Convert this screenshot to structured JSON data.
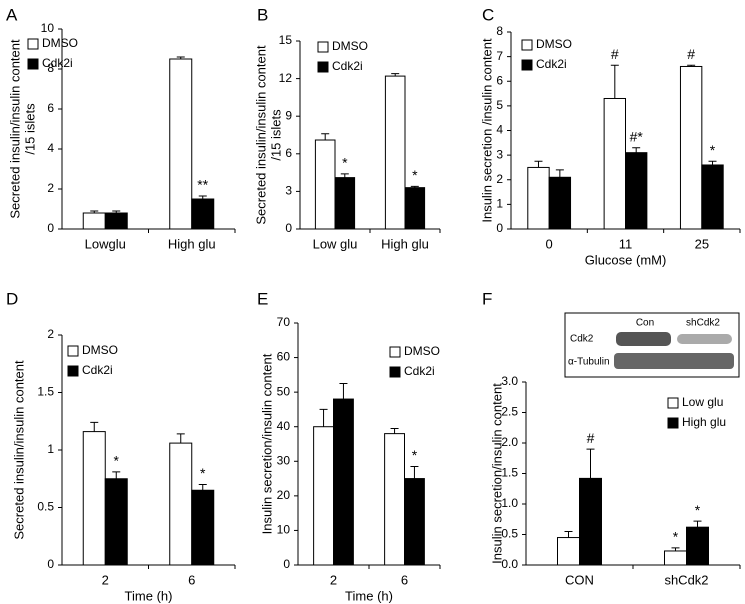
{
  "chart_data": [
    {
      "type": "bar",
      "title": "A",
      "ylabel": [
        "Secreted insulin/insulin content",
        "/15 islets"
      ],
      "categories": [
        "Lowglu",
        "High glu"
      ],
      "series": [
        {
          "name": "DMSO",
          "color": "#ffffff",
          "values": [
            0.8,
            8.5
          ],
          "errors": [
            0.1,
            0.1
          ],
          "annotations": [
            null,
            null
          ]
        },
        {
          "name": "Cdk2i",
          "color": "#000000",
          "values": [
            0.8,
            1.5
          ],
          "errors": [
            0.1,
            0.15
          ],
          "annotations": [
            null,
            "**"
          ]
        }
      ],
      "ylim": [
        0,
        10
      ],
      "yticks": [
        0,
        2,
        4,
        6,
        8,
        10
      ]
    },
    {
      "type": "bar",
      "title": "B",
      "ylabel": [
        "Secreted insulin/insulin content",
        "/15 islets"
      ],
      "categories": [
        "Low glu",
        "High glu"
      ],
      "series": [
        {
          "name": "DMSO",
          "color": "#ffffff",
          "values": [
            7.1,
            12.2
          ],
          "errors": [
            0.5,
            0.2
          ],
          "annotations": [
            null,
            null
          ]
        },
        {
          "name": "Cdk2i",
          "color": "#000000",
          "values": [
            4.1,
            3.3
          ],
          "errors": [
            0.3,
            0.1
          ],
          "annotations": [
            "*",
            "*"
          ]
        }
      ],
      "ylim": [
        0,
        15
      ],
      "yticks": [
        0,
        3,
        6,
        9,
        12,
        15
      ]
    },
    {
      "type": "bar",
      "title": "C",
      "ylabel": [
        "Insulin secretion /insulin content"
      ],
      "xlabel": "Glucose (mM)",
      "categories": [
        "0",
        "11",
        "25"
      ],
      "series": [
        {
          "name": "DMSO",
          "color": "#ffffff",
          "values": [
            2.5,
            5.3,
            6.6
          ],
          "errors": [
            0.25,
            1.35,
            0.05
          ],
          "annotations": [
            null,
            "#",
            "#"
          ]
        },
        {
          "name": "Cdk2i",
          "color": "#000000",
          "values": [
            2.1,
            3.1,
            2.6
          ],
          "errors": [
            0.3,
            0.2,
            0.15
          ],
          "annotations": [
            null,
            "#*",
            "*"
          ]
        }
      ],
      "ylim": [
        0,
        8
      ],
      "yticks": [
        0,
        1,
        2,
        3,
        4,
        5,
        6,
        7,
        8
      ]
    },
    {
      "type": "bar",
      "title": "D",
      "ylabel": [
        "Secreted insulin/insulin content"
      ],
      "xlabel": "Time (h)",
      "categories": [
        "2",
        "6"
      ],
      "series": [
        {
          "name": "DMSO",
          "color": "#ffffff",
          "values": [
            1.16,
            1.06
          ],
          "errors": [
            0.08,
            0.08
          ],
          "annotations": [
            null,
            null
          ]
        },
        {
          "name": "Cdk2i",
          "color": "#000000",
          "values": [
            0.75,
            0.65
          ],
          "errors": [
            0.06,
            0.05
          ],
          "annotations": [
            "*",
            "*"
          ]
        }
      ],
      "ylim": [
        0,
        2
      ],
      "yticks": [
        0,
        0.5,
        1,
        1.5,
        2
      ]
    },
    {
      "type": "bar",
      "title": "E",
      "ylabel": [
        "Insulin secretion/insulin content"
      ],
      "xlabel": "Time (h)",
      "categories": [
        "2",
        "6"
      ],
      "series": [
        {
          "name": "DMSO",
          "color": "#ffffff",
          "values": [
            40,
            38
          ],
          "errors": [
            5,
            1.5
          ],
          "annotations": [
            null,
            null
          ]
        },
        {
          "name": "Cdk2i",
          "color": "#000000",
          "values": [
            48,
            25
          ],
          "errors": [
            4.5,
            3.5
          ],
          "annotations": [
            null,
            "*"
          ]
        }
      ],
      "ylim": [
        0,
        70
      ],
      "yticks": [
        0,
        10,
        20,
        30,
        40,
        50,
        60,
        70
      ]
    },
    {
      "type": "bar",
      "title": "F",
      "ylabel": [
        "Insulin secretion/insulin content"
      ],
      "categories": [
        "CON",
        "shCdk2"
      ],
      "series": [
        {
          "name": "Low glu",
          "color": "#ffffff",
          "values": [
            0.45,
            0.23
          ],
          "errors": [
            0.1,
            0.05
          ],
          "annotations": [
            null,
            "*"
          ]
        },
        {
          "name": "High glu",
          "color": "#000000",
          "values": [
            1.42,
            0.62
          ],
          "errors": [
            0.48,
            0.1
          ],
          "annotations": [
            "#",
            "*"
          ]
        }
      ],
      "ylim": [
        0,
        3
      ],
      "yticks": [
        {
          "value": 0,
          "label": "0.0"
        },
        0.5,
        {
          "value": 1,
          "label": "1.0"
        },
        1.5,
        {
          "value": 2,
          "label": "2.0"
        },
        2.5,
        {
          "value": 3,
          "label": "3.0"
        }
      ],
      "inset": {
        "columns": [
          "Con",
          "shCdk2"
        ],
        "rows": [
          "Cdk2",
          "α-Tubulin"
        ]
      }
    }
  ]
}
